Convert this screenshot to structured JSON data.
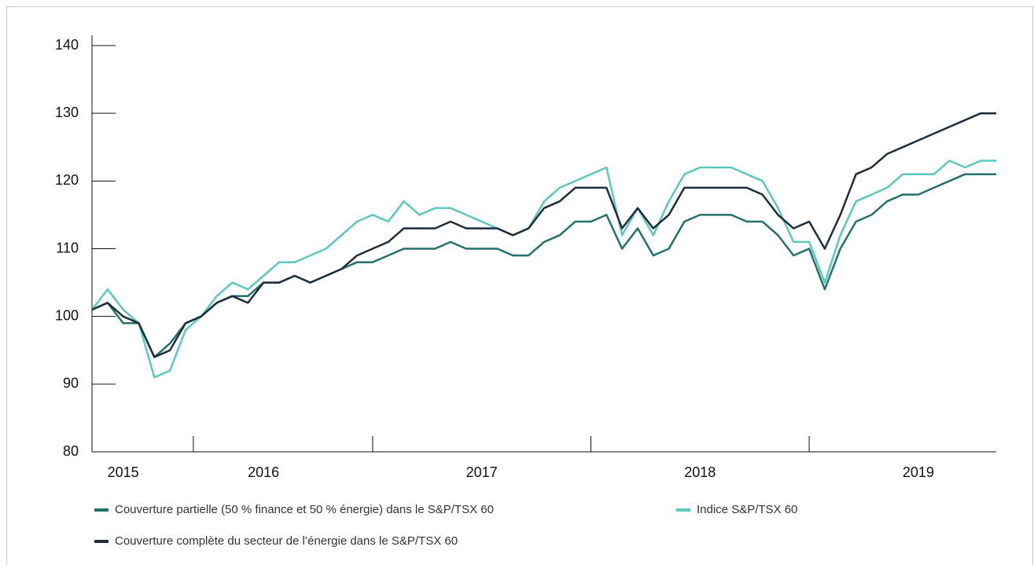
{
  "chart_data": {
    "type": "line",
    "categories": [
      null,
      null,
      "2015",
      null,
      null,
      null,
      null,
      null,
      null,
      null,
      null,
      "2016",
      null,
      null,
      null,
      null,
      null,
      null,
      null,
      null,
      null,
      null,
      null,
      null,
      null,
      "2017",
      null,
      null,
      null,
      null,
      null,
      null,
      null,
      null,
      null,
      null,
      null,
      null,
      null,
      "2018",
      null,
      null,
      null,
      null,
      null,
      null,
      null,
      null,
      null,
      null,
      null,
      null,
      null,
      "2019",
      null,
      null,
      null,
      null,
      null
    ],
    "series": [
      {
        "name": "Couverture partielle (50 % finance et 50 % énergie) dans le S&P/TSX 60",
        "color": "#23706c",
        "values": [
          101,
          102,
          99,
          99,
          94,
          96,
          99,
          100,
          102,
          103,
          103,
          105,
          105,
          106,
          105,
          106,
          107,
          108,
          108,
          109,
          110,
          110,
          110,
          111,
          110,
          110,
          110,
          109,
          109,
          111,
          112,
          114,
          114,
          115,
          110,
          113,
          109,
          110,
          114,
          115,
          115,
          115,
          114,
          114,
          112,
          109,
          110,
          104,
          110,
          114,
          115,
          117,
          118,
          118,
          119,
          120,
          121,
          121,
          121
        ]
      },
      {
        "name": "Indice S&P/TSX 60",
        "color": "#5cc8c0",
        "values": [
          101,
          104,
          101,
          99,
          91,
          92,
          98,
          100,
          103,
          105,
          104,
          106,
          108,
          108,
          109,
          110,
          112,
          114,
          115,
          114,
          117,
          115,
          116,
          116,
          115,
          114,
          113,
          112,
          113,
          117,
          119,
          120,
          121,
          122,
          112,
          116,
          112,
          117,
          121,
          122,
          122,
          122,
          121,
          120,
          116,
          111,
          111,
          105,
          112,
          117,
          118,
          119,
          121,
          121,
          121,
          123,
          122,
          123,
          123
        ]
      },
      {
        "name": "Couverture complète du secteur de l’énergie dans le S&P/TSX 60",
        "color": "#1e2d3e",
        "values": [
          101,
          102,
          100,
          99,
          94,
          95,
          99,
          100,
          102,
          103,
          102,
          105,
          105,
          106,
          105,
          106,
          107,
          109,
          110,
          111,
          113,
          113,
          113,
          114,
          113,
          113,
          113,
          112,
          113,
          116,
          117,
          119,
          119,
          119,
          113,
          116,
          113,
          115,
          119,
          119,
          119,
          119,
          119,
          118,
          115,
          113,
          114,
          110,
          115,
          121,
          122,
          124,
          125,
          126,
          127,
          128,
          129,
          130,
          130
        ]
      }
    ],
    "ylim": [
      80,
      140
    ],
    "yticks": [
      80,
      90,
      100,
      110,
      120,
      130,
      140
    ]
  }
}
